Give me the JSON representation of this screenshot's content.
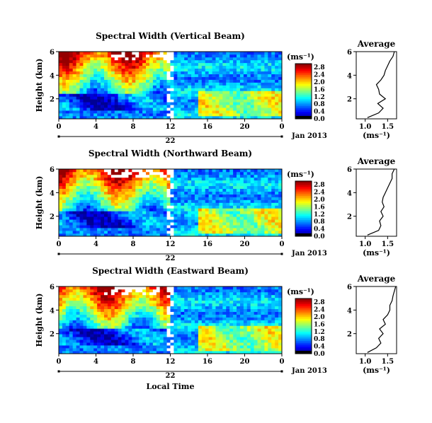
{
  "chart_data": [
    {
      "type": "heatmap",
      "title": "Spectral Width (Vertical Beam)",
      "ylabel": "Height (km)",
      "xlabel": "",
      "x_ticks": [
        "0",
        "4",
        "8",
        "12",
        "16",
        "20",
        "0"
      ],
      "xlim": [
        0,
        24
      ],
      "y_ticks": [
        "2",
        "4",
        "6"
      ],
      "ylim": [
        0.3,
        6
      ],
      "date_mid": "22",
      "date_right": "Jan 2013",
      "colorbar": {
        "unit": "(ms⁻¹)",
        "ticks": [
          "0.0",
          "0.4",
          "0.8",
          "1.2",
          "1.6",
          "2.0",
          "2.4",
          "2.8"
        ],
        "range": [
          0,
          3.0
        ]
      },
      "average": {
        "title": "Average",
        "xlabel": "(ms⁻¹)",
        "x_ticks": [
          "1.0",
          "1.5"
        ],
        "xlim": [
          0.8,
          1.7
        ],
        "y_ticks": [
          "2",
          "4",
          "6"
        ],
        "ylim": [
          0.3,
          6
        ],
        "height_km": [
          0.4,
          0.8,
          1.2,
          1.6,
          2.0,
          2.4,
          2.8,
          3.2,
          3.6,
          4.0,
          4.4,
          4.8,
          5.2,
          5.6,
          6.0
        ],
        "width_ms": [
          1.05,
          1.3,
          1.4,
          1.28,
          1.45,
          1.32,
          1.3,
          1.25,
          1.35,
          1.42,
          1.45,
          1.5,
          1.55,
          1.62,
          1.65
        ]
      }
    },
    {
      "type": "heatmap",
      "title": "Spectral Width (Northward Beam)",
      "ylabel": "Height (km)",
      "xlabel": "",
      "x_ticks": [
        "0",
        "4",
        "8",
        "12",
        "16",
        "20",
        "0"
      ],
      "xlim": [
        0,
        24
      ],
      "y_ticks": [
        "2",
        "4",
        "6"
      ],
      "ylim": [
        0.3,
        6
      ],
      "date_mid": "22",
      "date_right": "Jan 2013",
      "colorbar": {
        "unit": "(ms⁻¹)",
        "ticks": [
          "0.0",
          "0.4",
          "0.8",
          "1.2",
          "1.6",
          "2.0",
          "2.4",
          "2.8"
        ],
        "range": [
          0,
          3.0
        ]
      },
      "average": {
        "title": "Average",
        "xlabel": "(ms⁻¹)",
        "x_ticks": [
          "1.0",
          "1.5"
        ],
        "xlim": [
          0.8,
          1.7
        ],
        "y_ticks": [
          "2",
          "4",
          "6"
        ],
        "ylim": [
          0.3,
          6
        ],
        "height_km": [
          0.4,
          0.8,
          1.2,
          1.6,
          2.0,
          2.4,
          2.8,
          3.2,
          3.6,
          4.0,
          4.4,
          4.8,
          5.2,
          5.6,
          6.0
        ],
        "width_ms": [
          1.05,
          1.3,
          1.35,
          1.32,
          1.4,
          1.35,
          1.42,
          1.38,
          1.4,
          1.45,
          1.5,
          1.55,
          1.6,
          1.6,
          1.65
        ]
      }
    },
    {
      "type": "heatmap",
      "title": "Spectral Width (Eastward Beam)",
      "ylabel": "Height (km)",
      "xlabel": "Local Time",
      "x_ticks": [
        "0",
        "4",
        "8",
        "12",
        "16",
        "20",
        "0"
      ],
      "xlim": [
        0,
        24
      ],
      "y_ticks": [
        "2",
        "4",
        "6"
      ],
      "ylim": [
        0.3,
        6
      ],
      "date_mid": "22",
      "date_right": "Jan 2013",
      "colorbar": {
        "unit": "(ms⁻¹)",
        "ticks": [
          "0.0",
          "0.4",
          "0.8",
          "1.2",
          "1.6",
          "2.0",
          "2.4",
          "2.8"
        ],
        "range": [
          0,
          3.0
        ]
      },
      "average": {
        "title": "Average",
        "xlabel": "(ms⁻¹)",
        "x_ticks": [
          "1.0",
          "1.5"
        ],
        "xlim": [
          0.8,
          1.7
        ],
        "y_ticks": [
          "2",
          "4",
          "6"
        ],
        "ylim": [
          0.3,
          6
        ],
        "height_km": [
          0.4,
          0.8,
          1.2,
          1.6,
          2.0,
          2.4,
          2.8,
          3.2,
          3.6,
          4.0,
          4.4,
          4.8,
          5.2,
          5.6,
          6.0
        ],
        "width_ms": [
          1.05,
          1.25,
          1.35,
          1.3,
          1.4,
          1.32,
          1.45,
          1.4,
          1.5,
          1.55,
          1.55,
          1.6,
          1.62,
          1.65,
          1.68
        ]
      }
    }
  ]
}
